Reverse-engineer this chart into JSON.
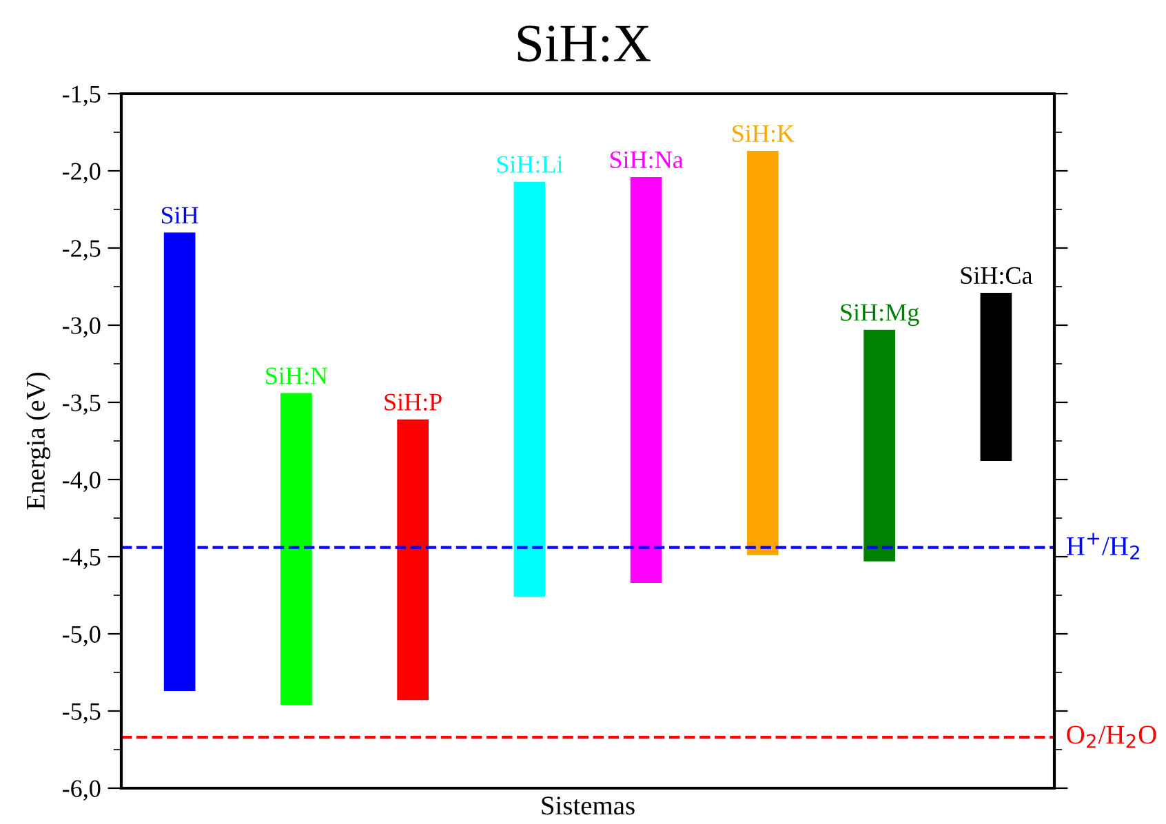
{
  "chart_data": {
    "type": "bar",
    "title": "SiH:X",
    "xlabel": "Sistemas",
    "ylabel": "Energia (eV)",
    "categories": [
      "SiH",
      "SiH:N",
      "SiH:P",
      "SiH:Li",
      "SiH:Na",
      "SiH:K",
      "SiH:Mg",
      "SiH:Ca"
    ],
    "base": [
      -5.37,
      -5.46,
      -5.43,
      -4.76,
      -4.67,
      -4.49,
      -4.53,
      -3.88
    ],
    "values": [
      2.97,
      2.02,
      1.82,
      2.69,
      2.63,
      2.62,
      1.5,
      1.09
    ],
    "colors": [
      "#0000ff",
      "#00ff00",
      "#ff0000",
      "#00ffff",
      "#ff00ff",
      "#ffa500",
      "#008000",
      "#000000"
    ],
    "ylim": [
      -6.0,
      -1.5
    ],
    "yticks": [
      {
        "value": -6.0,
        "label": "-6,0"
      },
      {
        "value": -5.75,
        "label": null
      },
      {
        "value": -5.5,
        "label": "-5,5"
      },
      {
        "value": -5.25,
        "label": null
      },
      {
        "value": -5.0,
        "label": "-5,0"
      },
      {
        "value": -4.75,
        "label": null
      },
      {
        "value": -4.5,
        "label": "-4,5"
      },
      {
        "value": -4.25,
        "label": null
      },
      {
        "value": -4.0,
        "label": "-4,0"
      },
      {
        "value": -3.75,
        "label": null
      },
      {
        "value": -3.5,
        "label": "-3,5"
      },
      {
        "value": -3.25,
        "label": null
      },
      {
        "value": -3.0,
        "label": "-3,0"
      },
      {
        "value": -2.75,
        "label": null
      },
      {
        "value": -2.5,
        "label": "-2,5"
      },
      {
        "value": -2.25,
        "label": null
      },
      {
        "value": -2.0,
        "label": "-2,0"
      },
      {
        "value": -1.75,
        "label": null
      },
      {
        "value": -1.5,
        "label": "-1,5"
      }
    ],
    "tick_labels": "y",
    "ref_lines": [
      {
        "axis": "y",
        "value": -4.44,
        "label": "H$^{+}$/H$_{2}$",
        "color": "#0000ff",
        "line_style": "dashed"
      },
      {
        "axis": "y",
        "value": -5.67,
        "label": "O$_{2}$/H$_{2}$O",
        "color": "#ff0000",
        "line_style": "dashed"
      }
    ],
    "grid": false,
    "legend": false
  }
}
